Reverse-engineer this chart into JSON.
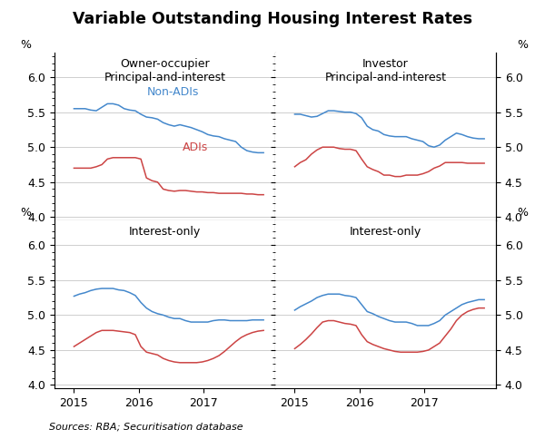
{
  "title": "Variable Outstanding Housing Interest Rates",
  "source": "Sources: RBA; Securitisation database",
  "blue_color": "#4488CC",
  "red_color": "#CC4444",
  "grid_color": "#BBBBBB",
  "yticks": [
    4.0,
    4.5,
    5.0,
    5.5,
    6.0
  ],
  "ytick_labels": [
    "4.0",
    "4.5",
    "5.0",
    "5.5",
    "6.0"
  ],
  "panel_titles": [
    "Owner-occupier\nPrincipal-and-interest",
    "Investor\nPrincipal-and-interest",
    "Interest-only",
    "Interest-only"
  ],
  "x_tick_labels": [
    "2015",
    "2016",
    "2017"
  ],
  "x_tick_positions": [
    2015,
    2016,
    2017
  ],
  "xlim": [
    2014.7,
    2018.1
  ],
  "ylim": [
    3.95,
    6.35
  ],
  "panels": {
    "tl": {
      "non_adis": [
        5.55,
        5.55,
        5.55,
        5.53,
        5.52,
        5.57,
        5.62,
        5.62,
        5.6,
        5.55,
        5.53,
        5.52,
        5.47,
        5.43,
        5.42,
        5.4,
        5.35,
        5.32,
        5.3,
        5.32,
        5.3,
        5.28,
        5.25,
        5.22,
        5.18,
        5.16,
        5.15,
        5.12,
        5.1,
        5.08,
        5.0,
        4.95,
        4.93,
        4.92,
        4.92
      ],
      "adis": [
        4.7,
        4.7,
        4.7,
        4.7,
        4.72,
        4.75,
        4.83,
        4.85,
        4.85,
        4.85,
        4.85,
        4.85,
        4.83,
        4.56,
        4.52,
        4.5,
        4.4,
        4.38,
        4.37,
        4.38,
        4.38,
        4.37,
        4.36,
        4.36,
        4.35,
        4.35,
        4.34,
        4.34,
        4.34,
        4.34,
        4.34,
        4.33,
        4.33,
        4.32,
        4.32
      ]
    },
    "tr": {
      "non_adis": [
        5.47,
        5.47,
        5.45,
        5.43,
        5.44,
        5.48,
        5.52,
        5.52,
        5.51,
        5.5,
        5.5,
        5.48,
        5.42,
        5.3,
        5.25,
        5.23,
        5.18,
        5.16,
        5.15,
        5.15,
        5.15,
        5.12,
        5.1,
        5.08,
        5.02,
        5.0,
        5.03,
        5.1,
        5.15,
        5.2,
        5.18,
        5.15,
        5.13,
        5.12,
        5.12
      ],
      "adis": [
        4.72,
        4.78,
        4.82,
        4.9,
        4.96,
        5.0,
        5.0,
        5.0,
        4.98,
        4.97,
        4.97,
        4.95,
        4.83,
        4.72,
        4.68,
        4.65,
        4.6,
        4.6,
        4.58,
        4.58,
        4.6,
        4.6,
        4.6,
        4.62,
        4.65,
        4.7,
        4.73,
        4.78,
        4.78,
        4.78,
        4.78,
        4.77,
        4.77,
        4.77,
        4.77
      ]
    },
    "bl": {
      "non_adis": [
        5.27,
        5.3,
        5.32,
        5.35,
        5.37,
        5.38,
        5.38,
        5.38,
        5.36,
        5.35,
        5.32,
        5.28,
        5.18,
        5.1,
        5.05,
        5.02,
        5.0,
        4.97,
        4.95,
        4.95,
        4.92,
        4.9,
        4.9,
        4.9,
        4.9,
        4.92,
        4.93,
        4.93,
        4.92,
        4.92,
        4.92,
        4.92,
        4.93,
        4.93,
        4.93
      ],
      "adis": [
        4.55,
        4.6,
        4.65,
        4.7,
        4.75,
        4.78,
        4.78,
        4.78,
        4.77,
        4.76,
        4.75,
        4.72,
        4.55,
        4.47,
        4.45,
        4.43,
        4.38,
        4.35,
        4.33,
        4.32,
        4.32,
        4.32,
        4.32,
        4.33,
        4.35,
        4.38,
        4.42,
        4.48,
        4.55,
        4.62,
        4.68,
        4.72,
        4.75,
        4.77,
        4.78
      ]
    },
    "br": {
      "non_adis": [
        5.07,
        5.12,
        5.16,
        5.2,
        5.25,
        5.28,
        5.3,
        5.3,
        5.3,
        5.28,
        5.27,
        5.25,
        5.15,
        5.05,
        5.02,
        4.98,
        4.95,
        4.92,
        4.9,
        4.9,
        4.9,
        4.88,
        4.85,
        4.85,
        4.85,
        4.88,
        4.92,
        5.0,
        5.05,
        5.1,
        5.15,
        5.18,
        5.2,
        5.22,
        5.22
      ],
      "adis": [
        4.52,
        4.58,
        4.65,
        4.73,
        4.82,
        4.9,
        4.92,
        4.92,
        4.9,
        4.88,
        4.87,
        4.85,
        4.72,
        4.62,
        4.58,
        4.55,
        4.52,
        4.5,
        4.48,
        4.47,
        4.47,
        4.47,
        4.47,
        4.48,
        4.5,
        4.55,
        4.6,
        4.7,
        4.8,
        4.92,
        5.0,
        5.05,
        5.08,
        5.1,
        5.1
      ]
    }
  }
}
